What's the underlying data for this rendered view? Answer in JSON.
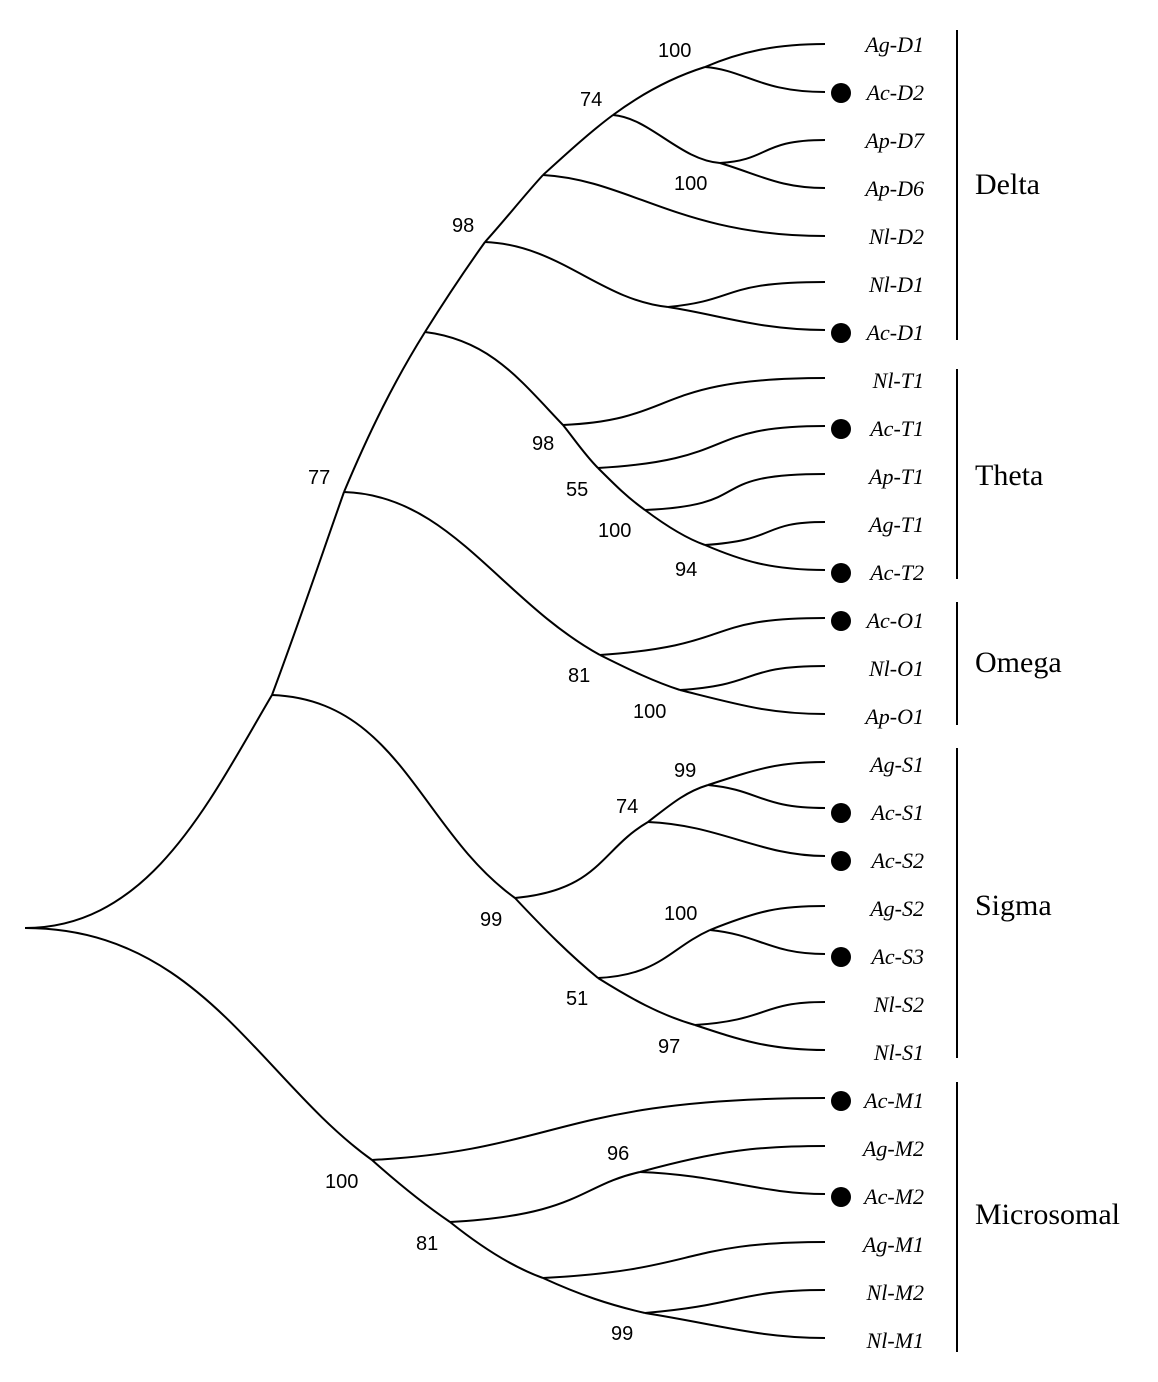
{
  "tree": {
    "marker_color": "#000000",
    "groups": [
      {
        "name": "Delta"
      },
      {
        "name": "Theta"
      },
      {
        "name": "Omega"
      },
      {
        "name": "Sigma"
      },
      {
        "name": "Microsomal"
      }
    ],
    "taxa": [
      {
        "label": "Ag-D1",
        "marked": false
      },
      {
        "label": "Ac-D2",
        "marked": true
      },
      {
        "label": "Ap-D7",
        "marked": false
      },
      {
        "label": "Ap-D6",
        "marked": false
      },
      {
        "label": "Nl-D2",
        "marked": false
      },
      {
        "label": "Nl-D1",
        "marked": false
      },
      {
        "label": "Ac-D1",
        "marked": true
      },
      {
        "label": "Nl-T1",
        "marked": false
      },
      {
        "label": "Ac-T1",
        "marked": true
      },
      {
        "label": "Ap-T1",
        "marked": false
      },
      {
        "label": "Ag-T1",
        "marked": false
      },
      {
        "label": "Ac-T2",
        "marked": true
      },
      {
        "label": "Ac-O1",
        "marked": true
      },
      {
        "label": "Nl-O1",
        "marked": false
      },
      {
        "label": "Ap-O1",
        "marked": false
      },
      {
        "label": "Ag-S1",
        "marked": false
      },
      {
        "label": "Ac-S1",
        "marked": true
      },
      {
        "label": "Ac-S2",
        "marked": true
      },
      {
        "label": "Ag-S2",
        "marked": false
      },
      {
        "label": "Ac-S3",
        "marked": true
      },
      {
        "label": "Nl-S2",
        "marked": false
      },
      {
        "label": "Nl-S1",
        "marked": false
      },
      {
        "label": "Ac-M1",
        "marked": true
      },
      {
        "label": "Ag-M2",
        "marked": false
      },
      {
        "label": "Ac-M2",
        "marked": true
      },
      {
        "label": "Ag-M1",
        "marked": false
      },
      {
        "label": "Nl-M2",
        "marked": false
      },
      {
        "label": "Nl-M1",
        "marked": false
      }
    ],
    "bootstrap": {
      "b_agd1_acd2": "100",
      "b_delta_core": "74",
      "b_apd7_apd6": "100",
      "b_delta_all": "98",
      "b_theta_all": "98",
      "b_theta_sub": "55",
      "b_apt1_agt1": "100",
      "b_theta_inner": "94",
      "b_upper": "77",
      "b_omega_all": "81",
      "b_nlo1_apo1": "100",
      "b_ags1_acs1": "99",
      "b_sigma_sub": "74",
      "b_sigma_all": "99",
      "b_ags2_acs3": "100",
      "b_sigma_sub2": "51",
      "b_nls2_nls1": "97",
      "b_micro_all": "100",
      "b_agm2_acm2": "96",
      "b_micro_sub": "81",
      "b_nlm_pair": "99"
    }
  }
}
